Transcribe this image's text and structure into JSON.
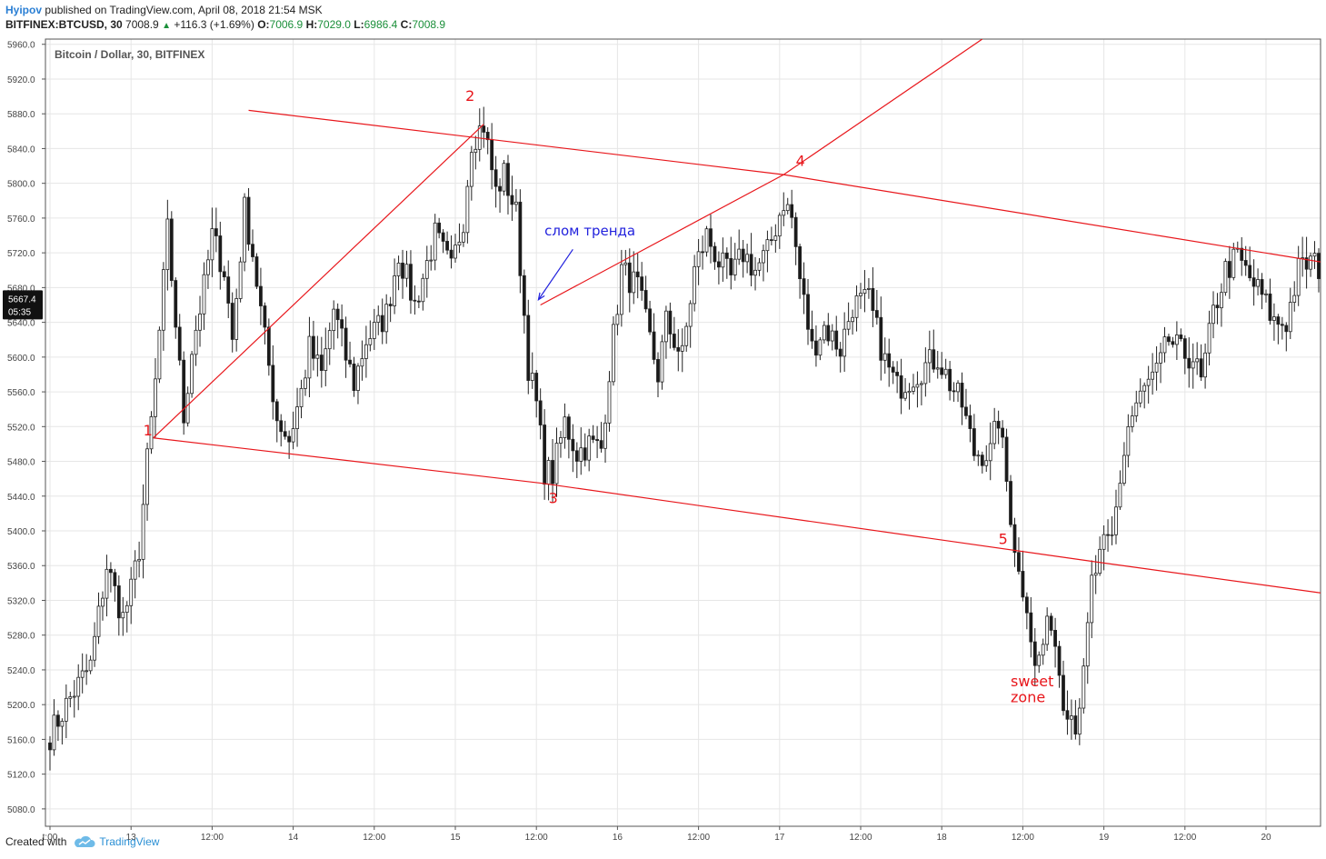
{
  "header": {
    "author": "Hyipov",
    "published": "published on TradingView.com, April 08, 2018 21:54 MSK",
    "symbol": "BITFINEX:BTCUSD, 30",
    "last": "7008.9",
    "change": "+116.3 (+1.69%)",
    "o_label": "O:",
    "o_value": "7006.9",
    "h_label": "H:",
    "h_value": "7029.0",
    "l_label": "L:",
    "l_value": "6986.4",
    "c_label": "C:",
    "c_value": "7008.9"
  },
  "footer": {
    "created_with": "Created with",
    "brand": "TradingView"
  },
  "colors": {
    "up": "#ffffff",
    "down": "#1a1a1a",
    "trendline": "#e8161b",
    "annotation_blue": "#2222dd",
    "grid": "#e6e6e6"
  },
  "chart_data": {
    "type": "candlestick",
    "title": "Bitcoin / Dollar, 30, BITFINEX",
    "ylim": [
      5060,
      5966
    ],
    "y_ticks": [
      "5960.0",
      "5920.0",
      "5880.0",
      "5840.0",
      "5800.0",
      "5760.0",
      "5720.0",
      "5680.0",
      "5640.0",
      "5600.0",
      "5560.0",
      "5520.0",
      "5480.0",
      "5440.0",
      "5400.0",
      "5360.0",
      "5320.0",
      "5280.0",
      "5240.0",
      "5200.0",
      "5160.0",
      "5120.0",
      "5080.0"
    ],
    "x_ticks": [
      {
        "label": "t:00",
        "bar": 0
      },
      {
        "label": "13",
        "bar": 20
      },
      {
        "label": "12:00",
        "bar": 40
      },
      {
        "label": "14",
        "bar": 60
      },
      {
        "label": "12:00",
        "bar": 80
      },
      {
        "label": "15",
        "bar": 100
      },
      {
        "label": "12:00",
        "bar": 120
      },
      {
        "label": "16",
        "bar": 140
      },
      {
        "label": "12:00",
        "bar": 160
      },
      {
        "label": "17",
        "bar": 180
      },
      {
        "label": "12:00",
        "bar": 200
      },
      {
        "label": "18",
        "bar": 220
      },
      {
        "label": "12:00",
        "bar": 240
      },
      {
        "label": "19",
        "bar": 260
      },
      {
        "label": "12:00",
        "bar": 280
      },
      {
        "label": "20",
        "bar": 300
      }
    ],
    "price_badge": {
      "price": "5667.4",
      "countdown": "05:35",
      "value": 5667.4
    },
    "anchors": [
      [
        0,
        5165
      ],
      [
        5,
        5208
      ],
      [
        10,
        5245
      ],
      [
        14,
        5360
      ],
      [
        18,
        5300
      ],
      [
        20,
        5330
      ],
      [
        22,
        5380
      ],
      [
        24,
        5480
      ],
      [
        26,
        5570
      ],
      [
        29,
        5745
      ],
      [
        31,
        5640
      ],
      [
        33,
        5530
      ],
      [
        35,
        5610
      ],
      [
        38,
        5680
      ],
      [
        40,
        5740
      ],
      [
        43,
        5700
      ],
      [
        45,
        5620
      ],
      [
        48,
        5770
      ],
      [
        50,
        5720
      ],
      [
        53,
        5620
      ],
      [
        56,
        5530
      ],
      [
        59,
        5505
      ],
      [
        62,
        5560
      ],
      [
        64,
        5610
      ],
      [
        67,
        5580
      ],
      [
        70,
        5655
      ],
      [
        73,
        5600
      ],
      [
        75,
        5570
      ],
      [
        78,
        5620
      ],
      [
        81,
        5635
      ],
      [
        83,
        5650
      ],
      [
        86,
        5720
      ],
      [
        90,
        5660
      ],
      [
        95,
        5740
      ],
      [
        99,
        5700
      ],
      [
        102,
        5760
      ],
      [
        104,
        5850
      ],
      [
        107,
        5868
      ],
      [
        110,
        5790
      ],
      [
        112,
        5810
      ],
      [
        115,
        5765
      ],
      [
        118,
        5590
      ],
      [
        120,
        5545
      ],
      [
        122,
        5470
      ],
      [
        124,
        5465
      ],
      [
        127,
        5525
      ],
      [
        130,
        5490
      ],
      [
        133,
        5500
      ],
      [
        136,
        5495
      ],
      [
        138,
        5585
      ],
      [
        141,
        5700
      ],
      [
        145,
        5680
      ],
      [
        148,
        5620
      ],
      [
        150,
        5580
      ],
      [
        152,
        5640
      ],
      [
        156,
        5600
      ],
      [
        159,
        5700
      ],
      [
        162,
        5740
      ],
      [
        165,
        5710
      ],
      [
        168,
        5690
      ],
      [
        171,
        5720
      ],
      [
        174,
        5700
      ],
      [
        177,
        5720
      ],
      [
        181,
        5780
      ],
      [
        183,
        5760
      ],
      [
        185,
        5690
      ],
      [
        188,
        5610
      ],
      [
        191,
        5635
      ],
      [
        195,
        5610
      ],
      [
        198,
        5660
      ],
      [
        202,
        5665
      ],
      [
        206,
        5595
      ],
      [
        209,
        5565
      ],
      [
        212,
        5575
      ],
      [
        216,
        5590
      ],
      [
        219,
        5600
      ],
      [
        222,
        5570
      ],
      [
        225,
        5545
      ],
      [
        228,
        5490
      ],
      [
        232,
        5490
      ],
      [
        234,
        5530
      ],
      [
        237,
        5420
      ],
      [
        239,
        5350
      ],
      [
        241,
        5320
      ],
      [
        243,
        5240
      ],
      [
        247,
        5300
      ],
      [
        250,
        5210
      ],
      [
        253,
        5180
      ],
      [
        255,
        5230
      ],
      [
        257,
        5340
      ],
      [
        260,
        5380
      ],
      [
        262,
        5390
      ],
      [
        264,
        5460
      ],
      [
        266,
        5520
      ],
      [
        268,
        5545
      ],
      [
        271,
        5570
      ],
      [
        273,
        5580
      ],
      [
        276,
        5620
      ],
      [
        279,
        5605
      ],
      [
        282,
        5600
      ],
      [
        284,
        5570
      ],
      [
        287,
        5650
      ],
      [
        290,
        5700
      ],
      [
        293,
        5715
      ],
      [
        296,
        5690
      ],
      [
        299,
        5670
      ],
      [
        302,
        5640
      ],
      [
        305,
        5640
      ],
      [
        308,
        5700
      ],
      [
        311,
        5710
      ],
      [
        314,
        5700
      ],
      [
        317,
        5690
      ],
      [
        320,
        5680
      ],
      [
        323,
        5660
      ]
    ],
    "trendlines": [
      {
        "from": [
          25.5,
          5507
        ],
        "to": [
          107,
          5868
        ]
      },
      {
        "from": [
          25.5,
          5507
        ],
        "to": [
          121,
          5455
        ]
      },
      {
        "from": [
          49,
          5884
        ],
        "to": [
          181,
          5810
        ]
      },
      {
        "from": [
          181,
          5810
        ],
        "to": [
          330,
          5697
        ]
      },
      {
        "from": [
          121,
          5455
        ],
        "to": [
          260,
          5363
        ]
      },
      {
        "from": [
          260,
          5363
        ],
        "to": [
          330,
          5318
        ]
      },
      {
        "from": [
          121,
          5660
        ],
        "to": [
          181,
          5810
        ]
      },
      {
        "from": [
          181,
          5810
        ],
        "to": [
          230,
          5966
        ]
      }
    ],
    "annotations": [
      {
        "text": "1",
        "bar": 23,
        "price": 5510,
        "color": "red"
      },
      {
        "text": "2",
        "bar": 102.5,
        "price": 5895,
        "color": "red"
      },
      {
        "text": "3",
        "bar": 123,
        "price": 5432,
        "color": "red"
      },
      {
        "text": "4",
        "bar": 184,
        "price": 5820,
        "color": "red"
      },
      {
        "text": "5",
        "bar": 234,
        "price": 5385,
        "color": "red"
      },
      {
        "text": "sweet",
        "bar": 237,
        "price": 5221,
        "color": "red"
      },
      {
        "text": "zone",
        "bar": 237,
        "price": 5203,
        "color": "red"
      },
      {
        "text": "слом тренда",
        "bar": 122,
        "price": 5740,
        "color": "blue"
      }
    ],
    "arrow": {
      "from": [
        129,
        5724
      ],
      "to": [
        120.5,
        5666
      ]
    }
  }
}
